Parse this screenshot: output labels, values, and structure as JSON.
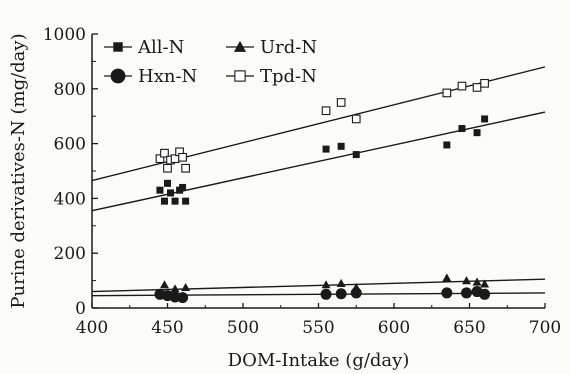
{
  "chart_data": {
    "type": "scatter",
    "xlabel": "DOM-Intake (g/day)",
    "ylabel": "Purine derivatives-N (mg/day)",
    "xlim": [
      400,
      700
    ],
    "ylim": [
      0,
      1000
    ],
    "xticks": [
      400,
      450,
      500,
      550,
      600,
      650,
      700
    ],
    "yticks": [
      0,
      200,
      400,
      600,
      800,
      1000
    ],
    "xtick_labels": [
      "400",
      "450",
      "500",
      "550",
      "600",
      "650",
      "700"
    ],
    "ytick_labels": [
      "0",
      "200",
      "400",
      "600",
      "800",
      "1000"
    ],
    "legend_position": "top-left",
    "grid": false,
    "series": [
      {
        "name": "All-N",
        "marker": "filled-square",
        "points": [
          [
            445,
            430
          ],
          [
            448,
            390
          ],
          [
            450,
            455
          ],
          [
            452,
            420
          ],
          [
            455,
            390
          ],
          [
            458,
            430
          ],
          [
            460,
            440
          ],
          [
            462,
            390
          ],
          [
            555,
            580
          ],
          [
            565,
            590
          ],
          [
            575,
            560
          ],
          [
            635,
            595
          ],
          [
            645,
            655
          ],
          [
            655,
            640
          ],
          [
            660,
            690
          ]
        ],
        "fit": [
          [
            400,
            355
          ],
          [
            700,
            715
          ]
        ]
      },
      {
        "name": "Urd-N",
        "marker": "filled-triangle",
        "points": [
          [
            448,
            85
          ],
          [
            455,
            70
          ],
          [
            462,
            75
          ],
          [
            555,
            85
          ],
          [
            565,
            90
          ],
          [
            575,
            75
          ],
          [
            635,
            110
          ],
          [
            648,
            100
          ],
          [
            655,
            95
          ],
          [
            660,
            88
          ]
        ],
        "fit": [
          [
            400,
            60
          ],
          [
            700,
            105
          ]
        ]
      },
      {
        "name": "Hxn-N",
        "marker": "filled-circle",
        "points": [
          [
            445,
            50
          ],
          [
            450,
            45
          ],
          [
            455,
            40
          ],
          [
            460,
            38
          ],
          [
            555,
            50
          ],
          [
            565,
            52
          ],
          [
            575,
            55
          ],
          [
            635,
            55
          ],
          [
            648,
            55
          ],
          [
            655,
            60
          ],
          [
            660,
            50
          ]
        ],
        "fit": [
          [
            400,
            45
          ],
          [
            700,
            55
          ]
        ]
      },
      {
        "name": "Tpd-N",
        "marker": "open-square",
        "points": [
          [
            445,
            545
          ],
          [
            448,
            565
          ],
          [
            450,
            510
          ],
          [
            452,
            540
          ],
          [
            455,
            545
          ],
          [
            458,
            570
          ],
          [
            460,
            550
          ],
          [
            462,
            510
          ],
          [
            555,
            720
          ],
          [
            565,
            750
          ],
          [
            575,
            690
          ],
          [
            635,
            785
          ],
          [
            645,
            810
          ],
          [
            655,
            805
          ],
          [
            660,
            820
          ]
        ],
        "fit": [
          [
            400,
            465
          ],
          [
            700,
            880
          ]
        ]
      }
    ]
  }
}
